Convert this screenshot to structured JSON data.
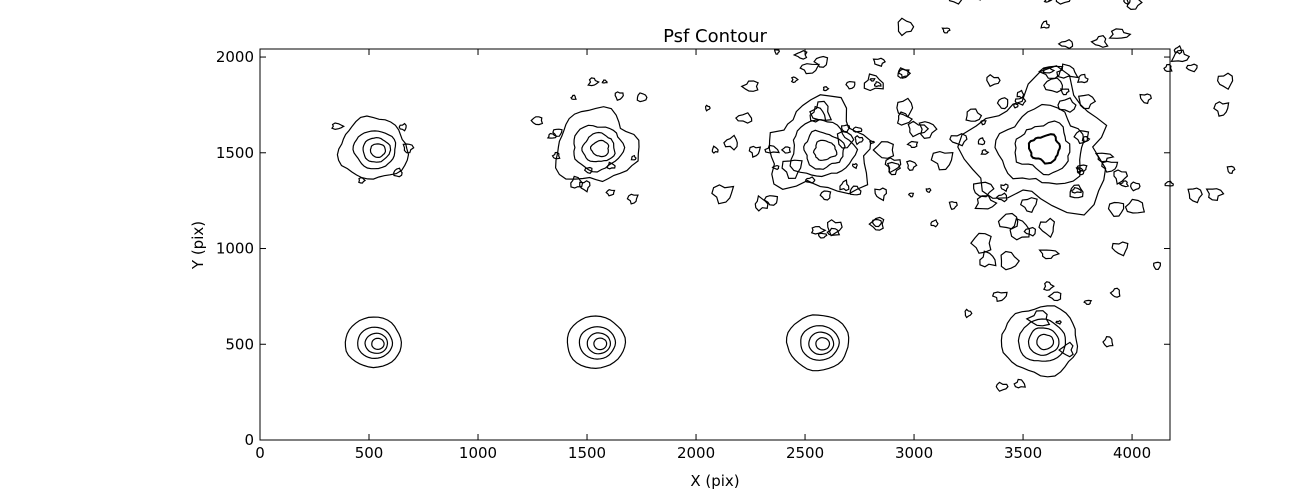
{
  "chart_data": {
    "type": "contour",
    "title": "Psf Contour",
    "x_label": "X (pix)",
    "y_label": "Y (pix)",
    "x": [
      520,
      1540,
      2570,
      3580,
      520,
      1540,
      2560,
      3580
    ],
    "y": [
      1520,
      1530,
      1520,
      1530,
      510,
      510,
      510,
      520
    ],
    "color": "#000000",
    "xlim": [
      0,
      4174
    ],
    "ylim": [
      0,
      2042
    ],
    "xticks": [
      0,
      500,
      1000,
      1500,
      2000,
      2500,
      3000,
      3500,
      4000
    ],
    "yticks": [
      0,
      500,
      1000,
      1500,
      2000
    ]
  }
}
